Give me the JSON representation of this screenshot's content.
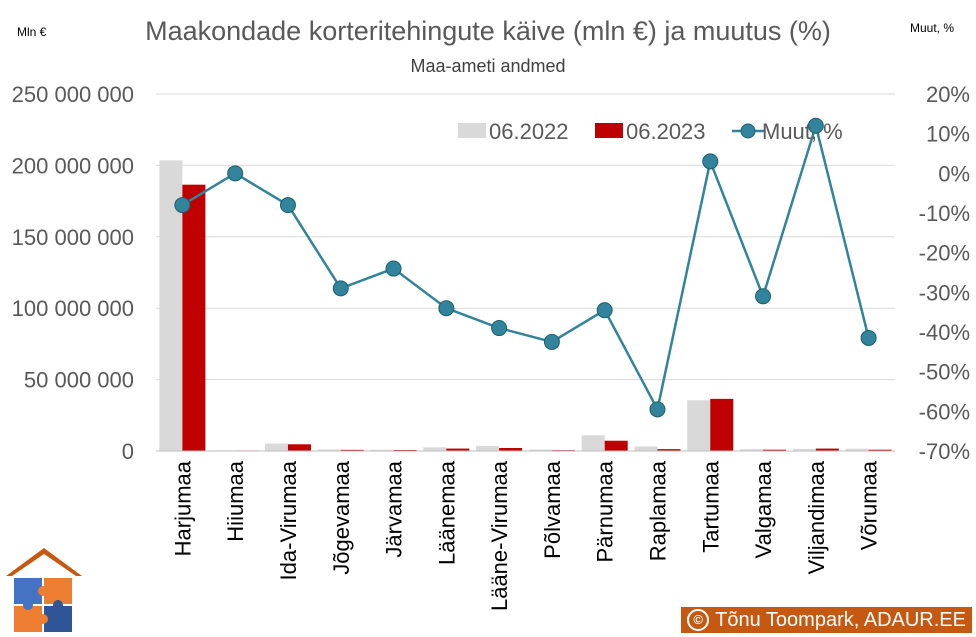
{
  "chart_data": {
    "type": "bar",
    "title": "Maakondade korteritehingute käive (mln €) ja muutus (%)",
    "subtitle": "Maa-ameti andmed",
    "left_unit_label": "Mln €",
    "right_unit_label": "Muut, %",
    "categories": [
      "Harjumaa",
      "Hiiumaa",
      "Ida-Virumaa",
      "Jõgevamaa",
      "Järvamaa",
      "Läänemaa",
      "Lääne-Virumaa",
      "Põlvamaa",
      "Pärnumaa",
      "Raplamaa",
      "Tartumaa",
      "Valgamaa",
      "Viljandimaa",
      "Võrumaa"
    ],
    "y_ticks": [
      "250 000 000",
      "200 000 000",
      "150 000 000",
      "100 000 000",
      "50 000 000",
      "0"
    ],
    "y2_ticks": [
      "20%",
      "10%",
      "0%",
      "-10%",
      "-20%",
      "-30%",
      "-40%",
      "-50%",
      "-60%",
      "-70%"
    ],
    "ylim": [
      0,
      250000000
    ],
    "y2lim": [
      -70,
      20
    ],
    "legend_position": "top-right",
    "grid": true,
    "series": [
      {
        "name": "06.2022",
        "kind": "bar",
        "axis": "left",
        "color": "#d9d9d9",
        "values": [
          203500000,
          400000,
          5200000,
          1100000,
          900000,
          2600000,
          3600000,
          1000000,
          11000000,
          3200000,
          35500000,
          1300000,
          1500000,
          1600000
        ]
      },
      {
        "name": "06.2023",
        "kind": "bar",
        "axis": "left",
        "color": "#c00000",
        "values": [
          186500000,
          400000,
          4700000,
          800000,
          700000,
          1700000,
          2100000,
          600000,
          7200000,
          1300000,
          36500000,
          900000,
          1700000,
          900000
        ]
      },
      {
        "name": "Muut, %",
        "kind": "line",
        "axis": "right",
        "color": "#31849b",
        "marker_color": "#31849b",
        "values": [
          -8,
          0,
          -8,
          -29,
          -24,
          -34,
          -39,
          -42.5,
          -34.5,
          -59.5,
          3,
          -31,
          12,
          -41.5
        ]
      }
    ]
  },
  "footer": {
    "copyright_symbol": "©",
    "credit": "Tõnu Toompark, ADAUR.EE"
  },
  "colors": {
    "axis_text": "#595959",
    "credit_bg": "#c65911"
  }
}
